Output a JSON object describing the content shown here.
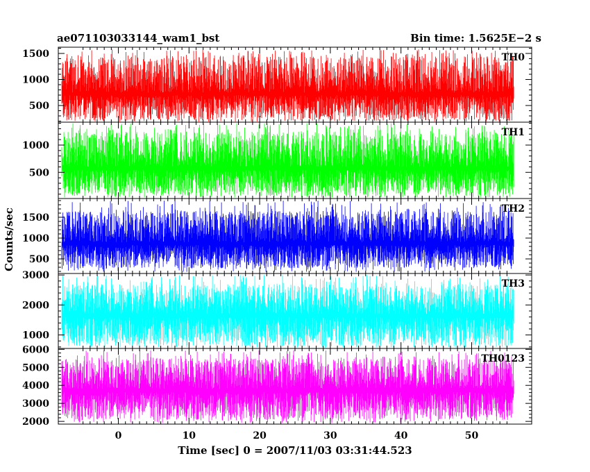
{
  "header": {
    "title": "ae071103033144_wam1_bst",
    "bin_time": "Bin time: 1.5625E−2 s"
  },
  "chart_data": {
    "type": "line",
    "xlabel": "Time [sec] 0 = 2007/11/03 03:31:44.523",
    "ylabel": "Counts/sec",
    "xlim": [
      -8.5,
      58.5
    ],
    "data_x_range": [
      -8.0,
      56.0
    ],
    "x_ticks": [
      0,
      10,
      20,
      30,
      40,
      50
    ],
    "x_tick_labels": [
      "0",
      "10",
      "20",
      "30",
      "40",
      "50"
    ],
    "panels": [
      {
        "name": "TH0",
        "color": "#ff0000",
        "ylim": [
          180,
          1620
        ],
        "y_ticks": [
          500,
          1000,
          1500
        ],
        "y_tick_labels": [
          "500",
          "1000",
          "1500"
        ],
        "mean": 750,
        "low": 220,
        "high": 1450,
        "max_high": 1580
      },
      {
        "name": "TH1",
        "color": "#00ff00",
        "ylim": [
          20,
          1420
        ],
        "y_ticks": [
          500,
          1000
        ],
        "y_tick_labels": [
          "500",
          "1000"
        ],
        "mean": 600,
        "low": 80,
        "high": 1250,
        "max_high": 1400
      },
      {
        "name": "TH2",
        "color": "#0000ff",
        "ylim": [
          150,
          1950
        ],
        "y_ticks": [
          500,
          1000,
          1500
        ],
        "y_tick_labels": [
          "500",
          "1000",
          "1500"
        ],
        "mean": 900,
        "low": 280,
        "high": 1650,
        "max_high": 1900
      },
      {
        "name": "TH3",
        "color": "#00ffff",
        "ylim": [
          550,
          3050
        ],
        "y_ticks": [
          1000,
          2000,
          3000
        ],
        "y_tick_labels": [
          "1000",
          "2000",
          "3000"
        ],
        "mean": 1700,
        "low": 650,
        "high": 2700,
        "max_high": 3000
      },
      {
        "name": "TH0123",
        "color": "#ff00ff",
        "ylim": [
          1850,
          6050
        ],
        "y_ticks": [
          2000,
          3000,
          4000,
          5000,
          6000
        ],
        "y_tick_labels": [
          "2000",
          "3000",
          "4000",
          "5000",
          "6000"
        ],
        "mean": 3800,
        "low": 2100,
        "high": 5500,
        "max_high": 5950
      }
    ]
  }
}
